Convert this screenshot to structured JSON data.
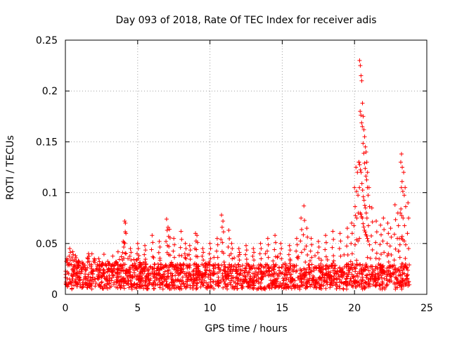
{
  "chart_data": {
    "type": "scatter",
    "title": "Day 093 of 2018, Rate Of TEC Index for receiver adis",
    "xlabel": "GPS time / hours",
    "ylabel": "ROTI / TECUs",
    "xlim": [
      0,
      25
    ],
    "ylim": [
      0,
      0.25
    ],
    "grid": true,
    "marker": "+",
    "marker_color": "#ff0000",
    "x_ticks": [
      {
        "value": 0,
        "label": "0"
      },
      {
        "value": 5,
        "label": "5"
      },
      {
        "value": 10,
        "label": "10"
      },
      {
        "value": 15,
        "label": "15"
      },
      {
        "value": 20,
        "label": "20"
      },
      {
        "value": 25,
        "label": "25"
      }
    ],
    "y_ticks": [
      {
        "value": 0,
        "label": "0"
      },
      {
        "value": 0.05,
        "label": "0.05"
      },
      {
        "value": 0.1,
        "label": "0.1"
      },
      {
        "value": 0.15,
        "label": "0.15"
      },
      {
        "value": 0.2,
        "label": "0.2"
      },
      {
        "value": 0.25,
        "label": "0.25"
      }
    ],
    "x_range_observed": [
      0,
      23.8
    ],
    "background_band": {
      "y_low": 0.005,
      "y_high": 0.03
    },
    "series": [
      {
        "name": "ROTI",
        "x": [
          0.1,
          0.3,
          0.5,
          0.7,
          0.9,
          1.2,
          1.6,
          2.0,
          2.5,
          3.0,
          3.5,
          4.0,
          4.1,
          4.15,
          4.5,
          5.0,
          5.5,
          6.0,
          6.5,
          7.0,
          7.1,
          7.2,
          7.5,
          8.0,
          8.3,
          8.6,
          9.0,
          9.1,
          9.5,
          10.0,
          10.5,
          10.8,
          10.9,
          11.3,
          11.5,
          12.0,
          12.5,
          13.0,
          13.5,
          14.0,
          14.5,
          14.9,
          15.5,
          16.0,
          16.3,
          16.5,
          16.7,
          17.0,
          17.5,
          18.0,
          18.5,
          19.0,
          19.5,
          19.8,
          20.0,
          20.1,
          20.2,
          20.3,
          20.35,
          20.4,
          20.45,
          20.5,
          20.55,
          20.6,
          20.65,
          20.7,
          20.75,
          20.8,
          20.85,
          20.9,
          21.0,
          21.2,
          21.5,
          21.8,
          22.0,
          22.3,
          22.5,
          22.8,
          23.0,
          23.1,
          23.2,
          23.25,
          23.3,
          23.4,
          23.5,
          23.7
        ],
        "y": [
          0.035,
          0.045,
          0.042,
          0.038,
          0.033,
          0.03,
          0.04,
          0.035,
          0.028,
          0.03,
          0.032,
          0.052,
          0.072,
          0.07,
          0.045,
          0.05,
          0.048,
          0.058,
          0.052,
          0.074,
          0.066,
          0.064,
          0.055,
          0.062,
          0.05,
          0.048,
          0.06,
          0.058,
          0.045,
          0.05,
          0.055,
          0.078,
          0.072,
          0.063,
          0.05,
          0.045,
          0.048,
          0.045,
          0.05,
          0.055,
          0.058,
          0.05,
          0.048,
          0.055,
          0.075,
          0.087,
          0.065,
          0.055,
          0.052,
          0.058,
          0.062,
          0.06,
          0.065,
          0.07,
          0.105,
          0.125,
          0.12,
          0.13,
          0.23,
          0.225,
          0.215,
          0.21,
          0.188,
          0.175,
          0.162,
          0.155,
          0.145,
          0.14,
          0.13,
          0.12,
          0.105,
          0.085,
          0.072,
          0.068,
          0.075,
          0.07,
          0.065,
          0.088,
          0.08,
          0.055,
          0.13,
          0.138,
          0.125,
          0.12,
          0.105,
          0.09
        ]
      }
    ]
  }
}
